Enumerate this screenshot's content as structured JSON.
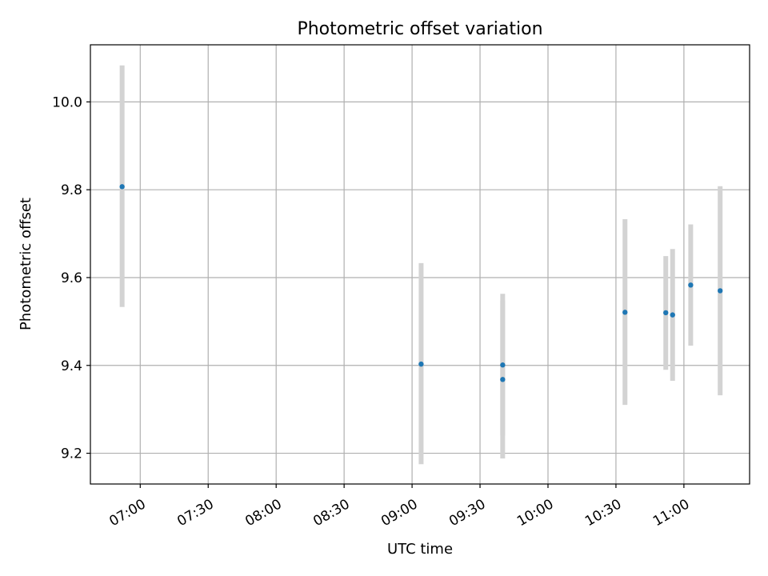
{
  "chart_data": {
    "type": "scatter",
    "title": "Photometric offset variation",
    "xlabel": "UTC time",
    "ylabel": "Photometric offset",
    "x_ticks": [
      "07:00",
      "07:30",
      "08:00",
      "08:30",
      "09:00",
      "09:30",
      "10:00",
      "10:30",
      "11:00"
    ],
    "x_tick_hours": [
      7.0,
      7.5,
      8.0,
      8.5,
      9.0,
      9.5,
      10.0,
      10.5,
      11.0
    ],
    "y_ticks": [
      9.2,
      9.4,
      9.6,
      9.8,
      10.0
    ],
    "xlim": [
      "06:38",
      "11:29"
    ],
    "ylim": [
      9.13,
      10.13
    ],
    "grid": true,
    "marker_color": "#1f77b4",
    "errorbar_color": "#d3d3d3",
    "points": [
      {
        "time": "06:52",
        "value": 9.807,
        "low": 9.533,
        "high": 10.083
      },
      {
        "time": "09:04",
        "value": 9.403,
        "low": 9.175,
        "high": 9.633
      },
      {
        "time": "09:40",
        "value": 9.401,
        "low": 9.24,
        "high": 9.563
      },
      {
        "time": "09:40",
        "value": 9.368,
        "low": 9.188,
        "high": 9.548
      },
      {
        "time": "10:34",
        "value": 9.521,
        "low": 9.31,
        "high": 9.733
      },
      {
        "time": "10:52",
        "value": 9.52,
        "low": 9.39,
        "high": 9.649
      },
      {
        "time": "10:55",
        "value": 9.515,
        "low": 9.365,
        "high": 9.665
      },
      {
        "time": "11:03",
        "value": 9.583,
        "low": 9.445,
        "high": 9.721
      },
      {
        "time": "11:16",
        "value": 9.57,
        "low": 9.332,
        "high": 9.808
      }
    ]
  }
}
